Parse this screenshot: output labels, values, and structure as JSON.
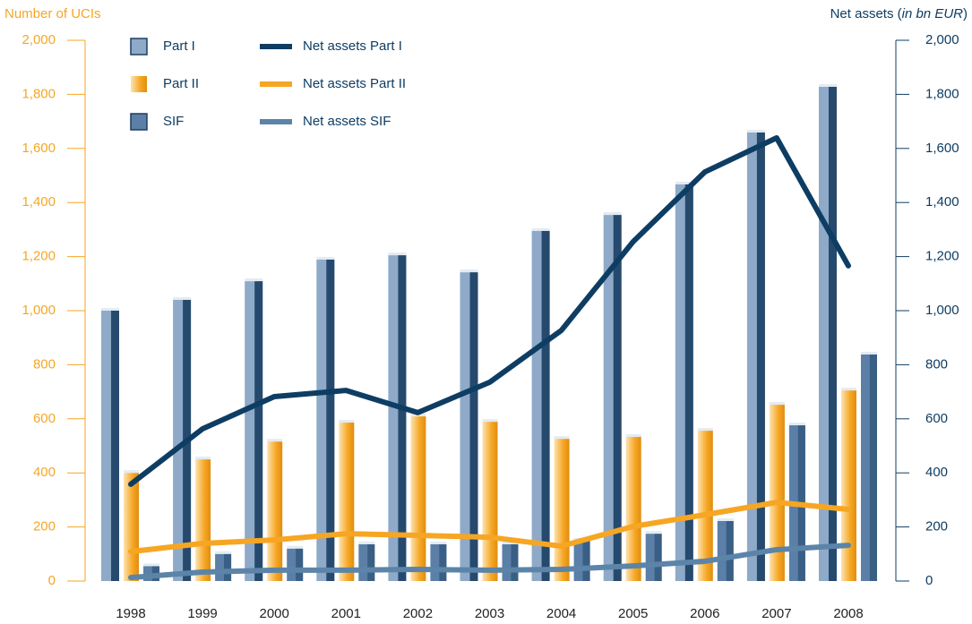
{
  "chart_data": {
    "type": "bar-line",
    "ylabel": "Number of UCIs",
    "y2label": [
      "Net assets (",
      "in bn EUR",
      ")"
    ],
    "categories": [
      "1998",
      "1999",
      "2000",
      "2001",
      "2002",
      "2003",
      "2004",
      "2005",
      "2006",
      "2007",
      "2008"
    ],
    "ylim": [
      0,
      2000
    ],
    "yticks": [
      0,
      200,
      400,
      600,
      800,
      {
        "value": 1000,
        "label": "1,000"
      },
      {
        "value": 1200,
        "label": "1,200"
      },
      {
        "value": 1400,
        "label": "1,400"
      },
      {
        "value": 1600,
        "label": "1,600"
      },
      {
        "value": 1800,
        "label": "1,800"
      },
      {
        "value": 2000,
        "label": "2,000"
      }
    ],
    "y2lim": [
      0,
      2000
    ],
    "y2ticks": [
      0,
      200,
      400,
      600,
      800,
      {
        "value": 1000,
        "label": "1,000"
      },
      {
        "value": 1200,
        "label": "1,200"
      },
      {
        "value": 1400,
        "label": "1,400"
      },
      {
        "value": 1600,
        "label": "1,600"
      },
      {
        "value": 1800,
        "label": "1,800"
      },
      {
        "value": 2000,
        "label": "2,000"
      }
    ],
    "series": [
      {
        "name": "Part I",
        "kind": "bar",
        "color": "#8eaac8",
        "values": [
          1000,
          1040,
          1109,
          1189,
          1205,
          1142,
          1295,
          1354,
          1467,
          1659,
          1828
        ]
      },
      {
        "name": "Part II",
        "kind": "bar",
        "color": "#f6a623",
        "values": [
          400,
          450,
          516,
          586,
          609,
          589,
          526,
          533,
          556,
          652,
          705
        ]
      },
      {
        "name": "SIF",
        "kind": "bar",
        "color": "#5b7fa6",
        "values": [
          55,
          100,
          120,
          136,
          136,
          136,
          150,
          175,
          222,
          576,
          838
        ]
      },
      {
        "name": "Net assets Part I",
        "kind": "line",
        "axis": "y2",
        "color": "#0e3d63",
        "values": [
          358,
          563,
          682,
          705,
          623,
          735,
          927,
          1255,
          1513,
          1639,
          1166
        ]
      },
      {
        "name": "Net assets Part II",
        "kind": "line",
        "axis": "y2",
        "color": "#f6a623",
        "values": [
          109,
          139,
          152,
          175,
          169,
          162,
          129,
          202,
          245,
          291,
          265
        ]
      },
      {
        "name": "Net assets SIF",
        "kind": "line",
        "axis": "y2",
        "color": "#5b84a8",
        "values": [
          13,
          33,
          40,
          40,
          43,
          40,
          43,
          56,
          73,
          116,
          132
        ]
      }
    ]
  }
}
